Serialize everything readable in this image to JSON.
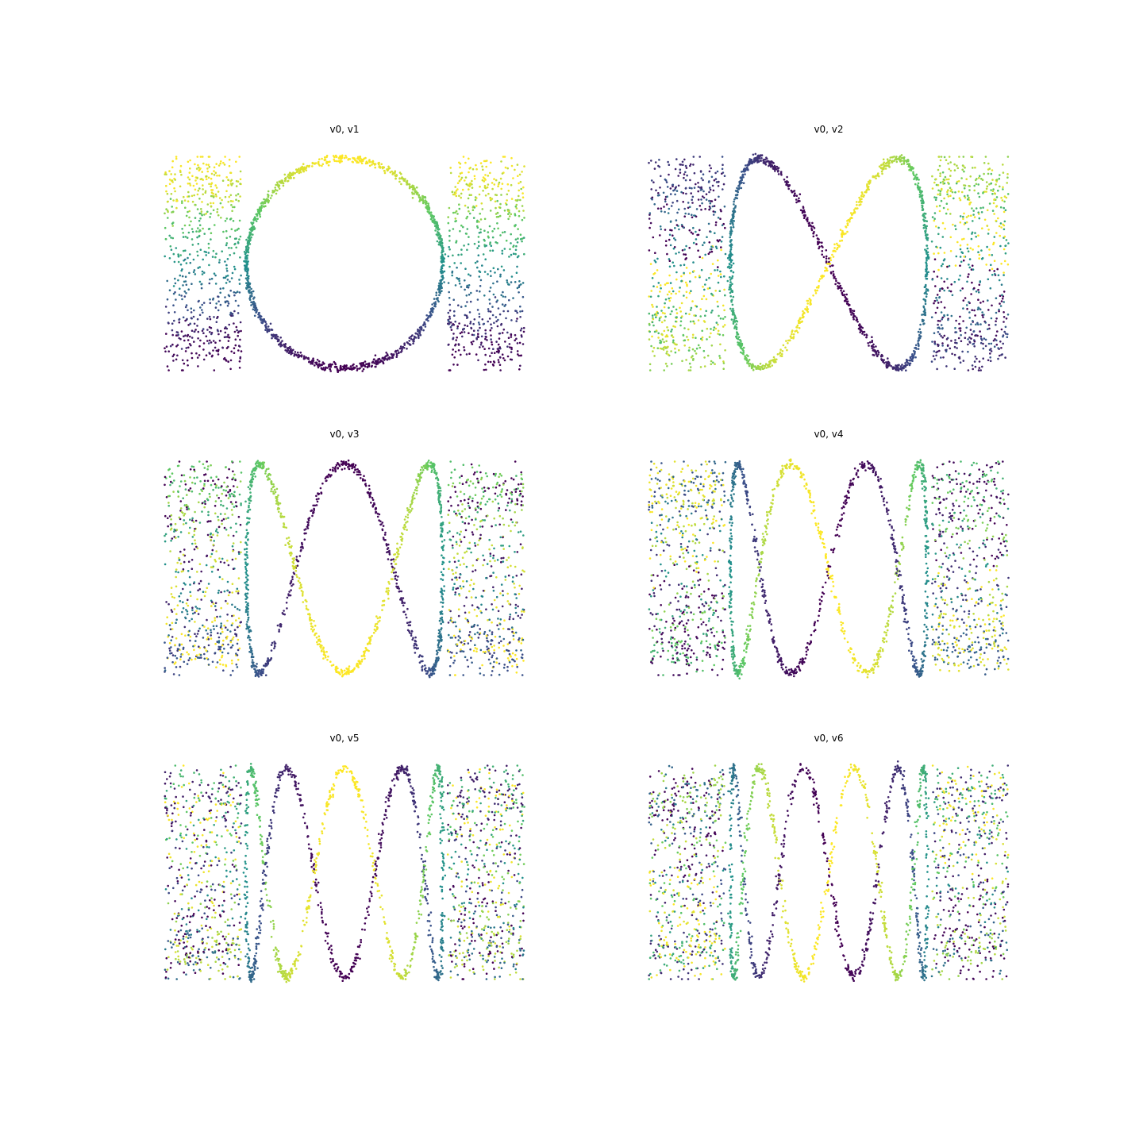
{
  "figure": {
    "background": "#ffffff",
    "colormap": "viridis",
    "colormap_stops": [
      "#440154",
      "#3b528b",
      "#21918c",
      "#5ec962",
      "#fde725"
    ]
  },
  "chart_data": [
    {
      "type": "scatter",
      "title": "v0, v1",
      "axes_visible": false,
      "grid": false,
      "legend": "none",
      "ratio_x": 1,
      "ratio_y": 1,
      "xlim": [
        -1.85,
        1.85
      ],
      "ylim": [
        -1.1,
        1.1
      ],
      "samples": 2400
    },
    {
      "type": "scatter",
      "title": "v0, v2",
      "axes_visible": false,
      "grid": false,
      "legend": "none",
      "ratio_x": 1,
      "ratio_y": 2,
      "xlim": [
        -1.85,
        1.85
      ],
      "ylim": [
        -1.1,
        1.1
      ],
      "samples": 2400
    },
    {
      "type": "scatter",
      "title": "v0, v3",
      "axes_visible": false,
      "grid": false,
      "legend": "none",
      "ratio_x": 1,
      "ratio_y": 3,
      "xlim": [
        -1.85,
        1.85
      ],
      "ylim": [
        -1.1,
        1.1
      ],
      "samples": 2400
    },
    {
      "type": "scatter",
      "title": "v0, v4",
      "axes_visible": false,
      "grid": false,
      "legend": "none",
      "ratio_x": 1,
      "ratio_y": 4,
      "xlim": [
        -1.85,
        1.85
      ],
      "ylim": [
        -1.1,
        1.1
      ],
      "samples": 2400
    },
    {
      "type": "scatter",
      "title": "v0, v5",
      "axes_visible": false,
      "grid": false,
      "legend": "none",
      "ratio_x": 1,
      "ratio_y": 5,
      "xlim": [
        -1.85,
        1.85
      ],
      "ylim": [
        -1.1,
        1.1
      ],
      "samples": 2400
    },
    {
      "type": "scatter",
      "title": "v0, v6",
      "axes_visible": false,
      "grid": false,
      "legend": "none",
      "ratio_x": 1,
      "ratio_y": 6,
      "xlim": [
        -1.85,
        1.85
      ],
      "ylim": [
        -1.1,
        1.1
      ],
      "samples": 2400
    }
  ]
}
